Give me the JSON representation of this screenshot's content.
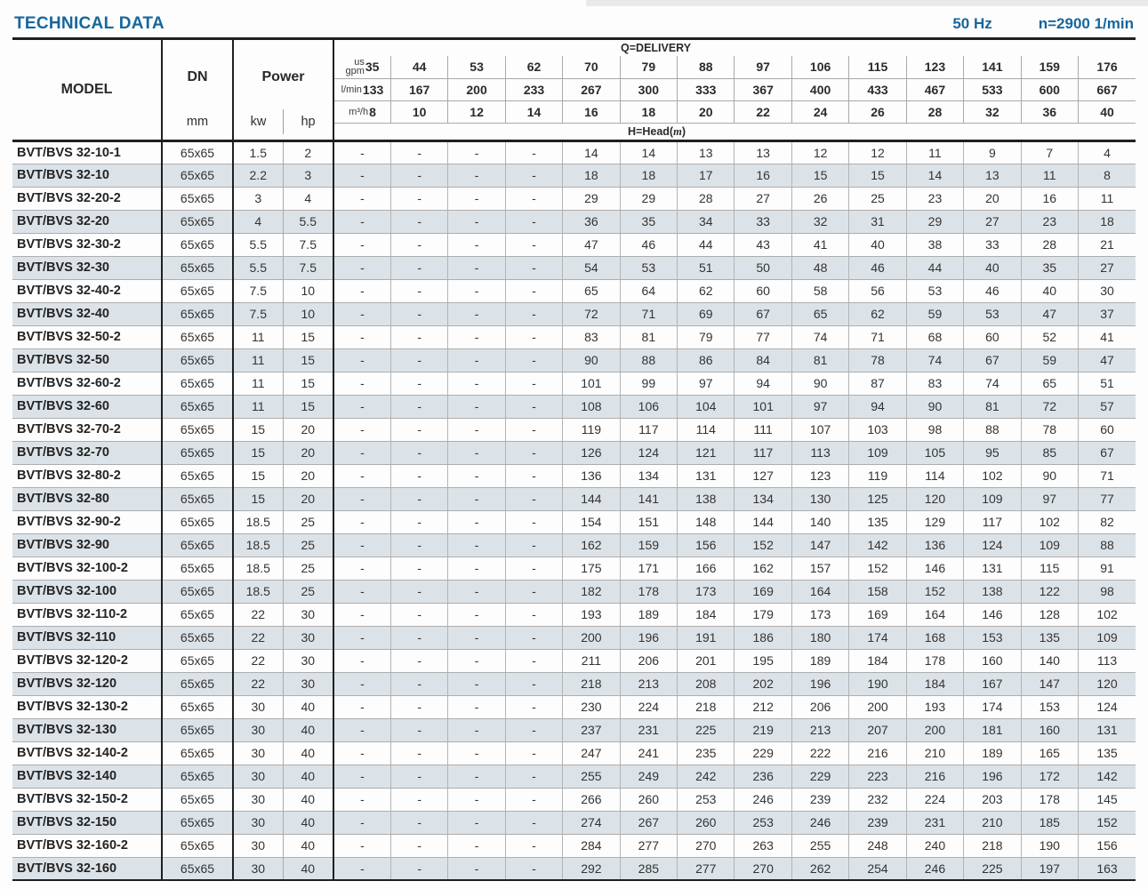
{
  "header": {
    "title": "TECHNICAL DATA",
    "frequency": "50 Hz",
    "speed": "n=2900 1/min"
  },
  "table": {
    "model_header": "MODEL",
    "dn_header": "DN",
    "dn_unit": "mm",
    "power_header": "Power",
    "power_units": [
      "kw",
      "hp"
    ],
    "delivery_title": "Q=DELIVERY",
    "head_label": {
      "prefix": "H=Head(",
      "var": "m",
      "suffix": ")"
    },
    "delivery_units": [
      {
        "key": "gpm",
        "label_lines": [
          "us",
          "gpm"
        ],
        "values": [
          "35",
          "44",
          "53",
          "62",
          "70",
          "79",
          "88",
          "97",
          "106",
          "115",
          "123",
          "141",
          "159",
          "176"
        ]
      },
      {
        "key": "lmin",
        "label_lines": [
          "l/min"
        ],
        "values": [
          "133",
          "167",
          "200",
          "233",
          "267",
          "300",
          "333",
          "367",
          "400",
          "433",
          "467",
          "533",
          "600",
          "667"
        ]
      },
      {
        "key": "m3h",
        "label_lines": [
          "m³/h"
        ],
        "values": [
          "8",
          "10",
          "12",
          "14",
          "16",
          "18",
          "20",
          "22",
          "24",
          "26",
          "28",
          "32",
          "36",
          "40"
        ]
      }
    ],
    "rows": [
      {
        "model": "BVT/BVS 32-10-1",
        "dn": "65x65",
        "kw": "1.5",
        "hp": "2",
        "head": [
          "-",
          "-",
          "-",
          "-",
          "14",
          "14",
          "13",
          "13",
          "12",
          "12",
          "11",
          "9",
          "7",
          "4"
        ]
      },
      {
        "model": "BVT/BVS 32-10",
        "dn": "65x65",
        "kw": "2.2",
        "hp": "3",
        "head": [
          "-",
          "-",
          "-",
          "-",
          "18",
          "18",
          "17",
          "16",
          "15",
          "15",
          "14",
          "13",
          "11",
          "8"
        ]
      },
      {
        "model": "BVT/BVS 32-20-2",
        "dn": "65x65",
        "kw": "3",
        "hp": "4",
        "head": [
          "-",
          "-",
          "-",
          "-",
          "29",
          "29",
          "28",
          "27",
          "26",
          "25",
          "23",
          "20",
          "16",
          "11"
        ]
      },
      {
        "model": "BVT/BVS 32-20",
        "dn": "65x65",
        "kw": "4",
        "hp": "5.5",
        "head": [
          "-",
          "-",
          "-",
          "-",
          "36",
          "35",
          "34",
          "33",
          "32",
          "31",
          "29",
          "27",
          "23",
          "18"
        ]
      },
      {
        "model": "BVT/BVS 32-30-2",
        "dn": "65x65",
        "kw": "5.5",
        "hp": "7.5",
        "head": [
          "-",
          "-",
          "-",
          "-",
          "47",
          "46",
          "44",
          "43",
          "41",
          "40",
          "38",
          "33",
          "28",
          "21"
        ]
      },
      {
        "model": "BVT/BVS 32-30",
        "dn": "65x65",
        "kw": "5.5",
        "hp": "7.5",
        "head": [
          "-",
          "-",
          "-",
          "-",
          "54",
          "53",
          "51",
          "50",
          "48",
          "46",
          "44",
          "40",
          "35",
          "27"
        ]
      },
      {
        "model": "BVT/BVS 32-40-2",
        "dn": "65x65",
        "kw": "7.5",
        "hp": "10",
        "head": [
          "-",
          "-",
          "-",
          "-",
          "65",
          "64",
          "62",
          "60",
          "58",
          "56",
          "53",
          "46",
          "40",
          "30"
        ]
      },
      {
        "model": "BVT/BVS 32-40",
        "dn": "65x65",
        "kw": "7.5",
        "hp": "10",
        "head": [
          "-",
          "-",
          "-",
          "-",
          "72",
          "71",
          "69",
          "67",
          "65",
          "62",
          "59",
          "53",
          "47",
          "37"
        ]
      },
      {
        "model": "BVT/BVS 32-50-2",
        "dn": "65x65",
        "kw": "11",
        "hp": "15",
        "head": [
          "-",
          "-",
          "-",
          "-",
          "83",
          "81",
          "79",
          "77",
          "74",
          "71",
          "68",
          "60",
          "52",
          "41"
        ]
      },
      {
        "model": "BVT/BVS 32-50",
        "dn": "65x65",
        "kw": "11",
        "hp": "15",
        "head": [
          "-",
          "-",
          "-",
          "-",
          "90",
          "88",
          "86",
          "84",
          "81",
          "78",
          "74",
          "67",
          "59",
          "47"
        ]
      },
      {
        "model": "BVT/BVS 32-60-2",
        "dn": "65x65",
        "kw": "11",
        "hp": "15",
        "head": [
          "-",
          "-",
          "-",
          "-",
          "101",
          "99",
          "97",
          "94",
          "90",
          "87",
          "83",
          "74",
          "65",
          "51"
        ]
      },
      {
        "model": "BVT/BVS 32-60",
        "dn": "65x65",
        "kw": "11",
        "hp": "15",
        "head": [
          "-",
          "-",
          "-",
          "-",
          "108",
          "106",
          "104",
          "101",
          "97",
          "94",
          "90",
          "81",
          "72",
          "57"
        ]
      },
      {
        "model": "BVT/BVS 32-70-2",
        "dn": "65x65",
        "kw": "15",
        "hp": "20",
        "head": [
          "-",
          "-",
          "-",
          "-",
          "119",
          "117",
          "114",
          "111",
          "107",
          "103",
          "98",
          "88",
          "78",
          "60"
        ]
      },
      {
        "model": "BVT/BVS 32-70",
        "dn": "65x65",
        "kw": "15",
        "hp": "20",
        "head": [
          "-",
          "-",
          "-",
          "-",
          "126",
          "124",
          "121",
          "117",
          "113",
          "109",
          "105",
          "95",
          "85",
          "67"
        ]
      },
      {
        "model": "BVT/BVS 32-80-2",
        "dn": "65x65",
        "kw": "15",
        "hp": "20",
        "head": [
          "-",
          "-",
          "-",
          "-",
          "136",
          "134",
          "131",
          "127",
          "123",
          "119",
          "114",
          "102",
          "90",
          "71"
        ]
      },
      {
        "model": "BVT/BVS 32-80",
        "dn": "65x65",
        "kw": "15",
        "hp": "20",
        "head": [
          "-",
          "-",
          "-",
          "-",
          "144",
          "141",
          "138",
          "134",
          "130",
          "125",
          "120",
          "109",
          "97",
          "77"
        ]
      },
      {
        "model": "BVT/BVS 32-90-2",
        "dn": "65x65",
        "kw": "18.5",
        "hp": "25",
        "head": [
          "-",
          "-",
          "-",
          "-",
          "154",
          "151",
          "148",
          "144",
          "140",
          "135",
          "129",
          "117",
          "102",
          "82"
        ]
      },
      {
        "model": "BVT/BVS 32-90",
        "dn": "65x65",
        "kw": "18.5",
        "hp": "25",
        "head": [
          "-",
          "-",
          "-",
          "-",
          "162",
          "159",
          "156",
          "152",
          "147",
          "142",
          "136",
          "124",
          "109",
          "88"
        ]
      },
      {
        "model": "BVT/BVS 32-100-2",
        "dn": "65x65",
        "kw": "18.5",
        "hp": "25",
        "head": [
          "-",
          "-",
          "-",
          "-",
          "175",
          "171",
          "166",
          "162",
          "157",
          "152",
          "146",
          "131",
          "115",
          "91"
        ]
      },
      {
        "model": "BVT/BVS 32-100",
        "dn": "65x65",
        "kw": "18.5",
        "hp": "25",
        "head": [
          "-",
          "-",
          "-",
          "-",
          "182",
          "178",
          "173",
          "169",
          "164",
          "158",
          "152",
          "138",
          "122",
          "98"
        ]
      },
      {
        "model": "BVT/BVS 32-110-2",
        "dn": "65x65",
        "kw": "22",
        "hp": "30",
        "head": [
          "-",
          "-",
          "-",
          "-",
          "193",
          "189",
          "184",
          "179",
          "173",
          "169",
          "164",
          "146",
          "128",
          "102"
        ]
      },
      {
        "model": "BVT/BVS 32-110",
        "dn": "65x65",
        "kw": "22",
        "hp": "30",
        "head": [
          "-",
          "-",
          "-",
          "-",
          "200",
          "196",
          "191",
          "186",
          "180",
          "174",
          "168",
          "153",
          "135",
          "109"
        ]
      },
      {
        "model": "BVT/BVS 32-120-2",
        "dn": "65x65",
        "kw": "22",
        "hp": "30",
        "head": [
          "-",
          "-",
          "-",
          "-",
          "211",
          "206",
          "201",
          "195",
          "189",
          "184",
          "178",
          "160",
          "140",
          "113"
        ]
      },
      {
        "model": "BVT/BVS 32-120",
        "dn": "65x65",
        "kw": "22",
        "hp": "30",
        "head": [
          "-",
          "-",
          "-",
          "-",
          "218",
          "213",
          "208",
          "202",
          "196",
          "190",
          "184",
          "167",
          "147",
          "120"
        ]
      },
      {
        "model": "BVT/BVS 32-130-2",
        "dn": "65x65",
        "kw": "30",
        "hp": "40",
        "head": [
          "-",
          "-",
          "-",
          "-",
          "230",
          "224",
          "218",
          "212",
          "206",
          "200",
          "193",
          "174",
          "153",
          "124"
        ]
      },
      {
        "model": "BVT/BVS 32-130",
        "dn": "65x65",
        "kw": "30",
        "hp": "40",
        "head": [
          "-",
          "-",
          "-",
          "-",
          "237",
          "231",
          "225",
          "219",
          "213",
          "207",
          "200",
          "181",
          "160",
          "131"
        ]
      },
      {
        "model": "BVT/BVS 32-140-2",
        "dn": "65x65",
        "kw": "30",
        "hp": "40",
        "head": [
          "-",
          "-",
          "-",
          "-",
          "247",
          "241",
          "235",
          "229",
          "222",
          "216",
          "210",
          "189",
          "165",
          "135"
        ]
      },
      {
        "model": "BVT/BVS 32-140",
        "dn": "65x65",
        "kw": "30",
        "hp": "40",
        "head": [
          "-",
          "-",
          "-",
          "-",
          "255",
          "249",
          "242",
          "236",
          "229",
          "223",
          "216",
          "196",
          "172",
          "142"
        ]
      },
      {
        "model": "BVT/BVS 32-150-2",
        "dn": "65x65",
        "kw": "30",
        "hp": "40",
        "head": [
          "-",
          "-",
          "-",
          "-",
          "266",
          "260",
          "253",
          "246",
          "239",
          "232",
          "224",
          "203",
          "178",
          "145"
        ]
      },
      {
        "model": "BVT/BVS 32-150",
        "dn": "65x65",
        "kw": "30",
        "hp": "40",
        "head": [
          "-",
          "-",
          "-",
          "-",
          "274",
          "267",
          "260",
          "253",
          "246",
          "239",
          "231",
          "210",
          "185",
          "152"
        ]
      },
      {
        "model": "BVT/BVS 32-160-2",
        "dn": "65x65",
        "kw": "30",
        "hp": "40",
        "head": [
          "-",
          "-",
          "-",
          "-",
          "284",
          "277",
          "270",
          "263",
          "255",
          "248",
          "240",
          "218",
          "190",
          "156"
        ]
      },
      {
        "model": "BVT/BVS 32-160",
        "dn": "65x65",
        "kw": "30",
        "hp": "40",
        "head": [
          "-",
          "-",
          "-",
          "-",
          "292",
          "285",
          "277",
          "270",
          "262",
          "254",
          "246",
          "225",
          "197",
          "163"
        ]
      }
    ]
  }
}
